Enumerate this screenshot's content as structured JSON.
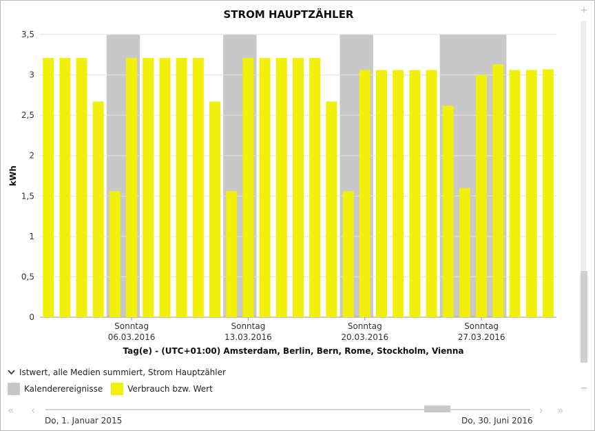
{
  "title": "STROM HAUPTZÄHLER",
  "legend": {
    "series_label": "Istwert, alle Medien summiert, Strom Hauptzähler",
    "items": [
      {
        "label": "Kalenderereignisse",
        "color": "#c8c8c8"
      },
      {
        "label": "Verbrauch bzw. Wert",
        "color": "#f0f00a"
      }
    ]
  },
  "range": {
    "start_label": "Do, 1. Januar 2015",
    "end_label": "Do, 30. Juni 2016"
  },
  "icons": {
    "scroll_up": "plus-icon",
    "scroll_down": "minus-icon",
    "first": "double-chevron-left-icon",
    "prev": "chevron-left-icon",
    "next": "chevron-right-icon",
    "last": "double-chevron-right-icon",
    "collapse": "chevron-down-icon"
  },
  "chart_data": {
    "type": "bar",
    "title": "STROM HAUPTZÄHLER",
    "xlabel": "Tag(e) - (UTC+01:00) Amsterdam, Berlin, Bern, Rome, Stockholm, Vienna",
    "ylabel": "kWh",
    "ylim": [
      0,
      3.5
    ],
    "yticks": [
      "0",
      "0,5",
      "1",
      "1,5",
      "2",
      "2,5",
      "3",
      "3,5"
    ],
    "grid": true,
    "legend_placement": "bottom-left",
    "bar_color": "#f0f00a",
    "event_color": "#c8c8c8",
    "categories": [
      "01.03.2016",
      "02.03.2016",
      "03.03.2016",
      "04.03.2016",
      "05.03.2016",
      "06.03.2016",
      "07.03.2016",
      "08.03.2016",
      "09.03.2016",
      "10.03.2016",
      "11.03.2016",
      "12.03.2016",
      "13.03.2016",
      "14.03.2016",
      "15.03.2016",
      "16.03.2016",
      "17.03.2016",
      "18.03.2016",
      "19.03.2016",
      "20.03.2016",
      "21.03.2016",
      "22.03.2016",
      "23.03.2016",
      "24.03.2016",
      "25.03.2016",
      "26.03.2016",
      "27.03.2016",
      "28.03.2016",
      "29.03.2016",
      "30.03.2016",
      "31.03.2016"
    ],
    "values": [
      3.21,
      3.21,
      3.21,
      2.67,
      1.56,
      3.21,
      3.21,
      3.21,
      3.21,
      3.21,
      2.67,
      1.56,
      3.21,
      3.21,
      3.21,
      3.21,
      3.21,
      2.67,
      1.56,
      3.06,
      3.06,
      3.06,
      3.06,
      3.06,
      2.62,
      1.6,
      3.0,
      3.13,
      3.06,
      3.06,
      3.07
    ],
    "x_tick_labels": [
      {
        "category": "06.03.2016",
        "line1": "Sonntag",
        "line2": "06.03.2016"
      },
      {
        "category": "13.03.2016",
        "line1": "Sonntag",
        "line2": "13.03.2016"
      },
      {
        "category": "20.03.2016",
        "line1": "Sonntag",
        "line2": "20.03.2016"
      },
      {
        "category": "27.03.2016",
        "line1": "Sonntag",
        "line2": "27.03.2016"
      }
    ],
    "event_bands": [
      {
        "from": "05.03.2016",
        "to": "06.03.2016"
      },
      {
        "from": "12.03.2016",
        "to": "13.03.2016"
      },
      {
        "from": "19.03.2016",
        "to": "20.03.2016"
      },
      {
        "from": "25.03.2016",
        "to": "28.03.2016"
      }
    ]
  }
}
